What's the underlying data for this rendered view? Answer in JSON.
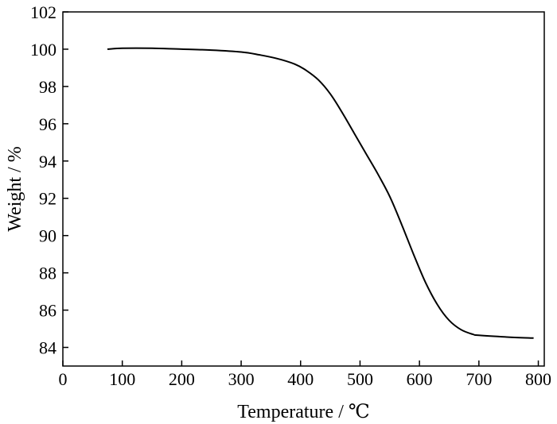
{
  "chart_data": {
    "type": "line",
    "title": "",
    "xlabel": "Temperature / ℃",
    "ylabel": "Weight / %",
    "xlim": [
      0,
      810
    ],
    "ylim": [
      83,
      102
    ],
    "xticks": [
      0,
      100,
      200,
      300,
      400,
      500,
      600,
      700,
      800
    ],
    "yticks": [
      84,
      86,
      88,
      90,
      92,
      94,
      96,
      98,
      100,
      102
    ],
    "grid": false,
    "legend": "none",
    "line_color": "#000000",
    "series": [
      {
        "x": [
          75,
          100,
          150,
          200,
          250,
          300,
          330,
          360,
          390,
          410,
          430,
          450,
          470,
          490,
          510,
          530,
          550,
          570,
          590,
          610,
          630,
          650,
          670,
          690,
          700,
          750,
          792
        ],
        "y": [
          100.0,
          100.05,
          100.05,
          100.0,
          99.95,
          99.85,
          99.7,
          99.5,
          99.2,
          98.85,
          98.35,
          97.6,
          96.6,
          95.5,
          94.4,
          93.3,
          92.1,
          90.6,
          89.0,
          87.5,
          86.3,
          85.45,
          84.95,
          84.7,
          84.65,
          84.55,
          84.5
        ]
      }
    ]
  }
}
